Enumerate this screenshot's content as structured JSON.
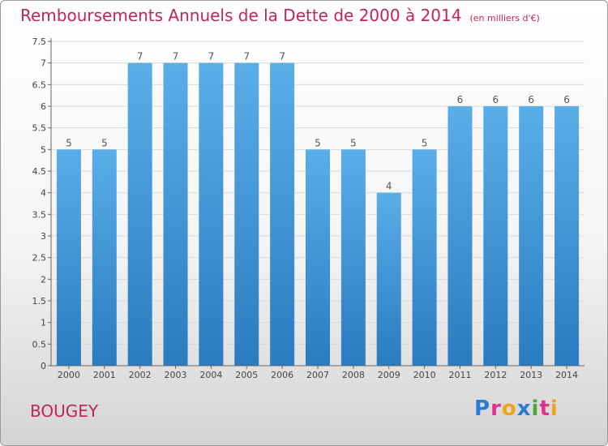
{
  "title": "Remboursements Annuels de la Dette de 2000 à 2014",
  "subtitle": "(en milliers d'€)",
  "commune": "BOUGEY",
  "logo": {
    "letters": [
      "P",
      "r",
      "o",
      "x",
      "i",
      "t",
      "i"
    ],
    "colors": [
      "#2b7bd6",
      "#e2318c",
      "#f0a31a",
      "#2b7bd6",
      "#4aa83a",
      "#e2318c",
      "#f0a31a"
    ]
  },
  "chart_data": {
    "type": "bar",
    "categories": [
      "2000",
      "2001",
      "2002",
      "2003",
      "2004",
      "2005",
      "2006",
      "2007",
      "2008",
      "2009",
      "2010",
      "2011",
      "2012",
      "2013",
      "2014"
    ],
    "values": [
      5,
      5,
      7,
      7,
      7,
      7,
      7,
      5,
      5,
      4,
      5,
      6,
      6,
      6,
      6
    ],
    "value_labels": [
      "5",
      "5",
      "7",
      "7",
      "7",
      "7",
      "7",
      "5",
      "5",
      "4",
      "5",
      "6",
      "6",
      "6",
      "6"
    ],
    "ylim": [
      0,
      7.5
    ],
    "yticks": [
      "0",
      "0.5",
      "1",
      "1.5",
      "2",
      "2.5",
      "3",
      "3.5",
      "4",
      "4.5",
      "5",
      "5.5",
      "6",
      "6.5",
      "7",
      "7.5"
    ],
    "grid": true,
    "bar_color_top": "#5aaee8",
    "bar_color_bottom": "#2a7bc0"
  }
}
